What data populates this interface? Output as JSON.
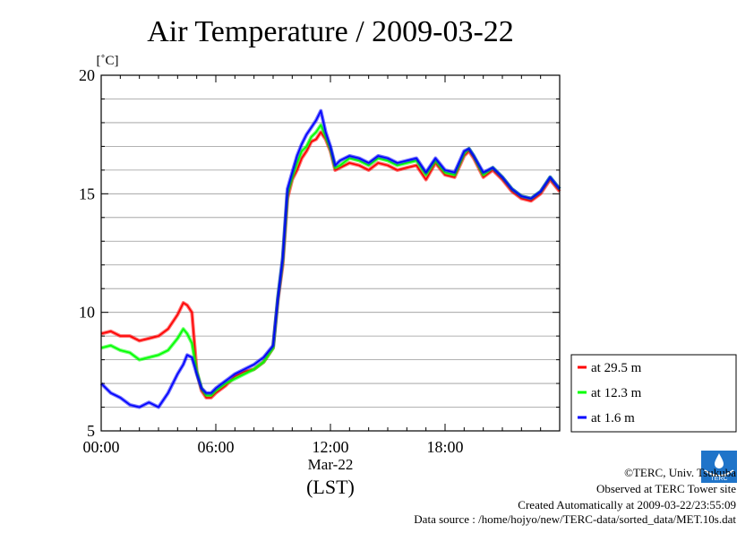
{
  "chart_data": {
    "type": "line",
    "title": "Air Temperature / 2009-03-22",
    "ylabel": "[˚C]",
    "xlabel_date": "Mar-22",
    "xlabel_tz": "(LST)",
    "ylim": [
      5,
      20
    ],
    "xlim": [
      0,
      24
    ],
    "yticks": [
      "5",
      "10",
      "15",
      "20"
    ],
    "xticks": [
      {
        "value": 0,
        "label": "00:00"
      },
      {
        "value": 6,
        "label": "06:00"
      },
      {
        "value": 12,
        "label": "12:00"
      },
      {
        "value": 18,
        "label": "18:00"
      }
    ],
    "grid": true,
    "legend_position": "right",
    "series": [
      {
        "name": "at 29.5 m",
        "color": "#ff0000",
        "x": [
          0,
          0.5,
          1,
          1.5,
          2,
          2.5,
          3,
          3.5,
          4,
          4.3,
          4.5,
          4.75,
          5,
          5.25,
          5.5,
          5.75,
          6,
          6.5,
          7,
          7.5,
          8,
          8.5,
          9,
          9.25,
          9.5,
          9.75,
          10,
          10.25,
          10.5,
          10.75,
          11,
          11.25,
          11.5,
          11.75,
          12,
          12.25,
          12.5,
          13,
          13.5,
          14,
          14.5,
          15,
          15.5,
          16,
          16.5,
          17,
          17.5,
          18,
          18.5,
          19,
          19.25,
          19.5,
          20,
          20.5,
          21,
          21.5,
          22,
          22.5,
          23,
          23.5,
          24
        ],
        "values": [
          9.1,
          9.2,
          9.0,
          9.0,
          8.8,
          8.9,
          9.0,
          9.3,
          9.9,
          10.4,
          10.3,
          10.0,
          7.5,
          6.7,
          6.4,
          6.4,
          6.6,
          6.9,
          7.3,
          7.5,
          7.6,
          7.9,
          8.5,
          10.5,
          12.0,
          14.8,
          15.6,
          16.0,
          16.5,
          16.8,
          17.2,
          17.3,
          17.6,
          17.3,
          16.8,
          16.0,
          16.1,
          16.3,
          16.2,
          16.0,
          16.3,
          16.2,
          16.0,
          16.1,
          16.2,
          15.6,
          16.3,
          15.8,
          15.7,
          16.6,
          16.8,
          16.5,
          15.7,
          16.0,
          15.6,
          15.1,
          14.8,
          14.7,
          15.0,
          15.6,
          15.1
        ]
      },
      {
        "name": "at 12.3 m",
        "color": "#00ff00",
        "x": [
          0,
          0.5,
          1,
          1.5,
          2,
          2.5,
          3,
          3.5,
          4,
          4.3,
          4.5,
          4.75,
          5,
          5.25,
          5.5,
          5.75,
          6,
          6.5,
          7,
          7.5,
          8,
          8.5,
          9,
          9.25,
          9.5,
          9.75,
          10,
          10.25,
          10.5,
          10.75,
          11,
          11.25,
          11.5,
          11.75,
          12,
          12.25,
          12.5,
          13,
          13.5,
          14,
          14.5,
          15,
          15.5,
          16,
          16.5,
          17,
          17.5,
          18,
          18.5,
          19,
          19.25,
          19.5,
          20,
          20.5,
          21,
          21.5,
          22,
          22.5,
          23,
          23.5,
          24
        ],
        "values": [
          8.5,
          8.6,
          8.4,
          8.3,
          8.0,
          8.1,
          8.2,
          8.4,
          8.9,
          9.3,
          9.1,
          8.7,
          7.5,
          6.8,
          6.5,
          6.5,
          6.7,
          7.0,
          7.2,
          7.4,
          7.6,
          7.9,
          8.5,
          10.6,
          12.2,
          15.0,
          15.7,
          16.3,
          16.8,
          17.0,
          17.4,
          17.6,
          17.9,
          17.4,
          16.9,
          16.1,
          16.2,
          16.5,
          16.4,
          16.2,
          16.5,
          16.4,
          16.2,
          16.3,
          16.4,
          15.8,
          16.4,
          15.9,
          15.8,
          16.7,
          16.9,
          16.6,
          15.8,
          16.1,
          15.7,
          15.2,
          14.9,
          14.8,
          15.1,
          15.7,
          15.2
        ]
      },
      {
        "name": "at 1.6 m",
        "color": "#0000ff",
        "x": [
          0,
          0.5,
          1,
          1.5,
          2,
          2.5,
          3,
          3.5,
          4,
          4.3,
          4.5,
          4.75,
          5,
          5.25,
          5.5,
          5.75,
          6,
          6.5,
          7,
          7.5,
          8,
          8.5,
          9,
          9.25,
          9.5,
          9.75,
          10,
          10.25,
          10.5,
          10.75,
          11,
          11.25,
          11.5,
          11.75,
          12,
          12.25,
          12.5,
          13,
          13.5,
          14,
          14.5,
          15,
          15.5,
          16,
          16.5,
          17,
          17.5,
          18,
          18.5,
          19,
          19.25,
          19.5,
          20,
          20.5,
          21,
          21.5,
          22,
          22.5,
          23,
          23.5,
          24
        ],
        "values": [
          7.0,
          6.6,
          6.4,
          6.1,
          6.0,
          6.2,
          6.0,
          6.6,
          7.4,
          7.8,
          8.2,
          8.1,
          7.4,
          6.8,
          6.6,
          6.6,
          6.8,
          7.1,
          7.4,
          7.6,
          7.8,
          8.1,
          8.6,
          10.6,
          12.3,
          15.2,
          15.9,
          16.6,
          17.1,
          17.5,
          17.8,
          18.1,
          18.5,
          17.6,
          17.0,
          16.2,
          16.4,
          16.6,
          16.5,
          16.3,
          16.6,
          16.5,
          16.3,
          16.4,
          16.5,
          15.9,
          16.5,
          16.0,
          15.9,
          16.8,
          16.9,
          16.6,
          15.9,
          16.1,
          15.7,
          15.2,
          14.9,
          14.8,
          15.1,
          15.7,
          15.2
        ]
      }
    ]
  },
  "footer": {
    "copyright": "©TERC, Univ. Tsukuba",
    "observed": "Observed at TERC Tower site",
    "created": "Created Automatically at 2009-03-22/23:55:09",
    "source": "Data source : /home/hojyo/new/TERC-data/sorted_data/MET.10s.dat",
    "logo_text": "TERC"
  }
}
